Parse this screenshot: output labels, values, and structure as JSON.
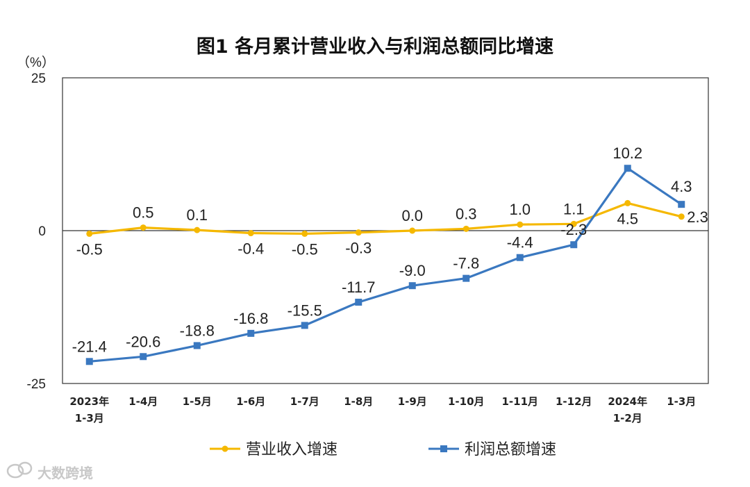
{
  "chart_data": {
    "type": "line",
    "title": "图1  各月累计营业收入与利润总额同比增速",
    "unit_label": "（%）",
    "ylim": [
      -25,
      25
    ],
    "yticks": [
      "25",
      "0",
      "-25"
    ],
    "ytick_values": [
      25,
      0,
      -25
    ],
    "categories": [
      [
        "2023年",
        "1-3月"
      ],
      [
        "1-4月"
      ],
      [
        "1-5月"
      ],
      [
        "1-6月"
      ],
      [
        "1-7月"
      ],
      [
        "1-8月"
      ],
      [
        "1-9月"
      ],
      [
        "1-10月"
      ],
      [
        "1-11月"
      ],
      [
        "1-12月"
      ],
      [
        "2024年",
        "1-2月"
      ],
      [
        "1-3月"
      ]
    ],
    "series": [
      {
        "name": "营业收入增速",
        "color": "#f5b800",
        "values": [
          -0.5,
          0.5,
          0.1,
          -0.4,
          -0.5,
          -0.3,
          0.0,
          0.3,
          1.0,
          1.1,
          4.5,
          2.3
        ],
        "labels": [
          "-0.5",
          "0.5",
          "0.1",
          "-0.4",
          "-0.5",
          "-0.3",
          "0.0",
          "0.3",
          "1.0",
          "1.1",
          "4.5",
          "2.3"
        ]
      },
      {
        "name": "利润总额增速",
        "color": "#3a78c0",
        "values": [
          -21.4,
          -20.6,
          -18.8,
          -16.8,
          -15.5,
          -11.7,
          -9.0,
          -7.8,
          -4.4,
          -2.3,
          10.2,
          4.3
        ],
        "labels": [
          "-21.4",
          "-20.6",
          "-18.8",
          "-16.8",
          "-15.5",
          "-11.7",
          "-9.0",
          "-7.8",
          "-4.4",
          "-2.3",
          "10.2",
          "4.3"
        ]
      }
    ],
    "legend_position": "bottom",
    "grid": false
  },
  "watermark": {
    "text": "大数跨境",
    "icon": "chat-bubbles-icon"
  }
}
